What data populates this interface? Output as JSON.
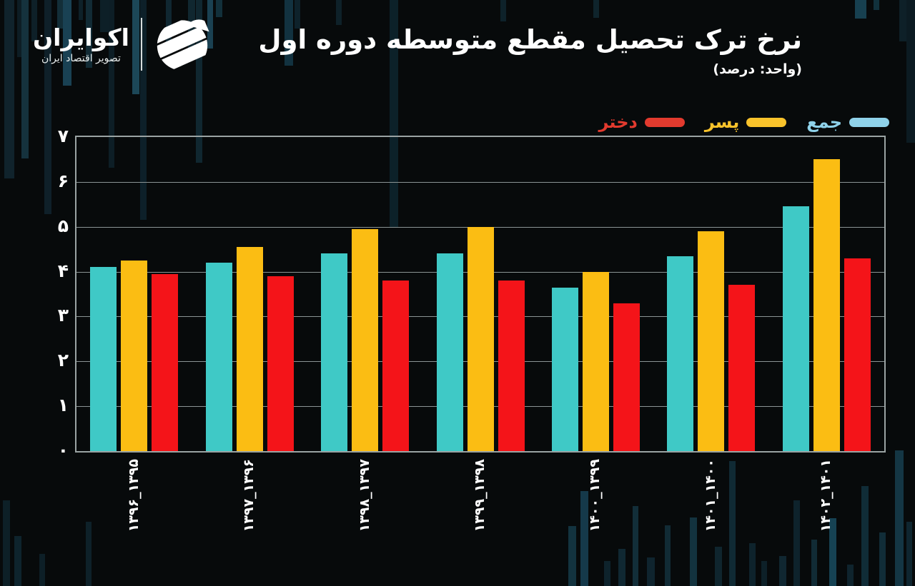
{
  "brand": {
    "name": "اکوایران",
    "tagline": "تصویر اقتصاد ایران",
    "logo_icon": "ecoiran-striped-circle-icon"
  },
  "header": {
    "title": "نرخ ترک تحصیل مقطع متوسطه دوره اول",
    "subtitle": "(واحد: درصد)"
  },
  "legend": {
    "items": [
      {
        "key": "total",
        "label": "جمع",
        "color": "#8fd2ea"
      },
      {
        "key": "boys",
        "label": "پسر",
        "color": "#f9c32b"
      },
      {
        "key": "girls",
        "label": "دختر",
        "color": "#e23a2e"
      }
    ]
  },
  "chart_data": {
    "type": "bar",
    "title": "نرخ ترک تحصیل مقطع متوسطه دوره اول",
    "unit_label": "(واحد: درصد)",
    "categories": [
      "۱۳۹۶_۱۳۹۵",
      "۱۳۹۷_۱۳۹۶",
      "۱۳۹۸_۱۳۹۷",
      "۱۳۹۹_۱۳۹۸",
      "۱۴۰۰_۱۳۹۹",
      "۱۴۰۱_۱۴۰۰",
      "۱۴۰۲_۱۴۰۱"
    ],
    "series": [
      {
        "name": "جمع",
        "key": "total",
        "color": "#3fc9c6",
        "values": [
          4.1,
          4.2,
          4.4,
          4.4,
          3.65,
          4.35,
          5.45
        ]
      },
      {
        "name": "پسر",
        "key": "boys",
        "color": "#fbbd13",
        "values": [
          4.25,
          4.55,
          4.95,
          5.0,
          4.0,
          4.9,
          6.5
        ]
      },
      {
        "name": "دختر",
        "key": "girls",
        "color": "#f41419",
        "values": [
          3.95,
          3.9,
          3.8,
          3.8,
          3.3,
          3.7,
          4.3
        ]
      }
    ],
    "ylim": [
      0,
      7
    ],
    "yticks": [
      "۰",
      "۱",
      "۲",
      "۳",
      "۴",
      "۵",
      "۶",
      "۷"
    ],
    "xlabel": "",
    "ylabel": "",
    "grid": "horizontal",
    "legend_position": "top-right",
    "background": "#070a0b"
  }
}
